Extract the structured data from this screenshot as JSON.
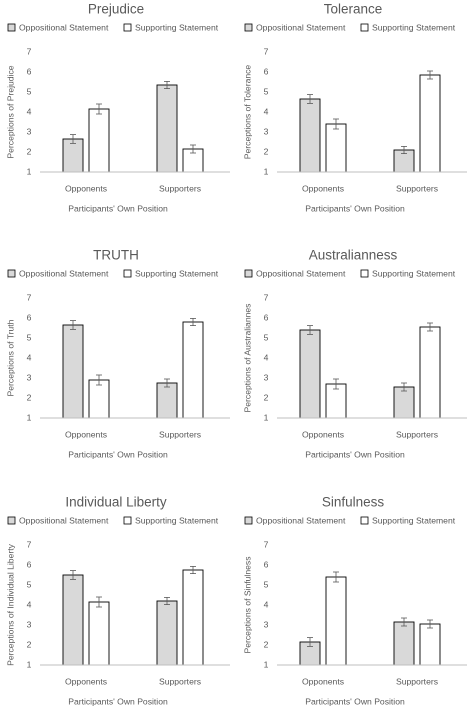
{
  "chart_data": [
    {
      "type": "bar",
      "title": "Prejudice",
      "ylabel": "Perceptions of Prejudice",
      "xlabel": "Participants' Own Position",
      "categories": [
        "Opponents",
        "Supporters"
      ],
      "series": [
        {
          "name": "Oppositional Statement",
          "values": [
            2.65,
            5.35
          ],
          "errors": [
            0.22,
            0.18
          ]
        },
        {
          "name": "Supporting Statement",
          "values": [
            4.15,
            2.15
          ],
          "errors": [
            0.25,
            0.2
          ]
        }
      ],
      "ylim": [
        1,
        7
      ],
      "yticks": [
        "1",
        "2",
        "3",
        "4",
        "5",
        "6",
        "7"
      ],
      "legend": "top"
    },
    {
      "type": "bar",
      "title": "Tolerance",
      "ylabel": "Perceptions of Tolerance",
      "xlabel": "Participants' Own Position",
      "categories": [
        "Opponents",
        "Supporters"
      ],
      "series": [
        {
          "name": "Oppositional Statement",
          "values": [
            4.65,
            2.1
          ],
          "errors": [
            0.22,
            0.18
          ]
        },
        {
          "name": "Supporting Statement",
          "values": [
            3.4,
            5.85
          ],
          "errors": [
            0.25,
            0.2
          ]
        }
      ],
      "ylim": [
        1,
        7
      ],
      "yticks": [
        "1",
        "2",
        "3",
        "4",
        "5",
        "6",
        "7"
      ],
      "legend": "top"
    },
    {
      "type": "bar",
      "title": "TRUTH",
      "ylabel": "Perceptions of Truth",
      "xlabel": "Participants' Own Position",
      "categories": [
        "Opponents",
        "Supporters"
      ],
      "series": [
        {
          "name": "Oppositional Statement",
          "values": [
            5.65,
            2.75
          ],
          "errors": [
            0.22,
            0.2
          ]
        },
        {
          "name": "Supporting Statement",
          "values": [
            2.9,
            5.8
          ],
          "errors": [
            0.25,
            0.18
          ]
        }
      ],
      "ylim": [
        1,
        7
      ],
      "yticks": [
        "1",
        "2",
        "3",
        "4",
        "5",
        "6",
        "7"
      ],
      "legend": "top"
    },
    {
      "type": "bar",
      "title": "Australianness",
      "ylabel": "Perceptions of Australiannes",
      "xlabel": "Participants' Own Position",
      "categories": [
        "Opponents",
        "Supporters"
      ],
      "series": [
        {
          "name": "Oppositional Statement",
          "values": [
            5.4,
            2.55
          ],
          "errors": [
            0.22,
            0.2
          ]
        },
        {
          "name": "Supporting Statement",
          "values": [
            2.7,
            5.55
          ],
          "errors": [
            0.25,
            0.2
          ]
        }
      ],
      "ylim": [
        1,
        7
      ],
      "yticks": [
        "1",
        "2",
        "3",
        "4",
        "5",
        "6",
        "7"
      ],
      "legend": "top"
    },
    {
      "type": "bar",
      "title": "Individual Liberty",
      "ylabel": "Perceptions of Individual Liberty",
      "xlabel": "Participants' Own Position",
      "categories": [
        "Opponents",
        "Supporters"
      ],
      "series": [
        {
          "name": "Oppositional Statement",
          "values": [
            5.5,
            4.2
          ],
          "errors": [
            0.22,
            0.18
          ]
        },
        {
          "name": "Supporting Statement",
          "values": [
            4.15,
            5.75
          ],
          "errors": [
            0.25,
            0.18
          ]
        }
      ],
      "ylim": [
        1,
        7
      ],
      "yticks": [
        "1",
        "2",
        "3",
        "4",
        "5",
        "6",
        "7"
      ],
      "legend": "top"
    },
    {
      "type": "bar",
      "title": "Sinfulness",
      "ylabel": "Perceptions of Sinfulness",
      "xlabel": "Participants' Own Position",
      "categories": [
        "Opponents",
        "Supporters"
      ],
      "series": [
        {
          "name": "Oppositional Statement",
          "values": [
            2.15,
            3.15
          ],
          "errors": [
            0.22,
            0.2
          ]
        },
        {
          "name": "Supporting Statement",
          "values": [
            5.4,
            3.05
          ],
          "errors": [
            0.25,
            0.2
          ]
        }
      ],
      "ylim": [
        1,
        7
      ],
      "yticks": [
        "1",
        "2",
        "3",
        "4",
        "5",
        "6",
        "7"
      ],
      "legend": "top"
    }
  ],
  "colors": {
    "oppositional_fill": "#d9d9d9",
    "supporting_fill": "#ffffff",
    "bar_stroke": "#000000",
    "axis": "#bfbfbf",
    "text": "#595959",
    "error_bar": "#595959"
  }
}
